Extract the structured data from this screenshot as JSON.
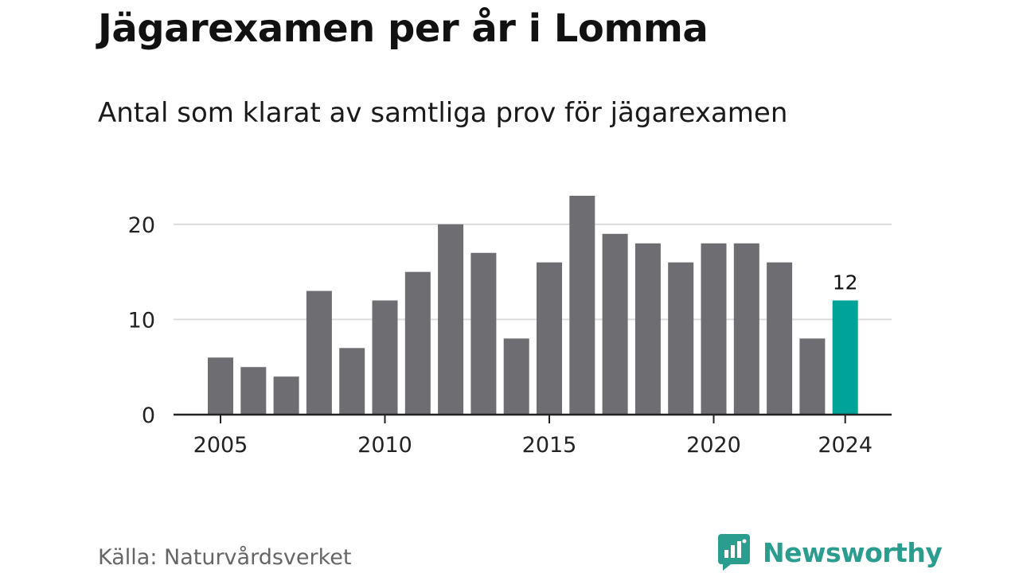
{
  "title": "Jägarexamen per år i Lomma",
  "subtitle": "Antal som klarat av samtliga prov för jägarexamen",
  "source": "Källa: Naturvårdsverket",
  "brand": {
    "name": "Newsworthy",
    "icon": "newsworthy-logo-icon",
    "color": "#2a9d8f"
  },
  "colors": {
    "bar": "#6e6d72",
    "highlight": "#00a398",
    "grid": "#dcdcdc",
    "axis": "#222222"
  },
  "chart_data": {
    "type": "bar",
    "title": "Jägarexamen per år i Lomma",
    "subtitle": "Antal som klarat av samtliga prov för jägarexamen",
    "xlabel": "",
    "ylabel": "",
    "categories": [
      2005,
      2006,
      2007,
      2008,
      2009,
      2010,
      2011,
      2012,
      2013,
      2014,
      2015,
      2016,
      2017,
      2018,
      2019,
      2020,
      2021,
      2022,
      2023,
      2024
    ],
    "values": [
      6,
      5,
      4,
      13,
      7,
      12,
      15,
      20,
      17,
      8,
      16,
      23,
      19,
      18,
      16,
      18,
      18,
      16,
      8,
      12
    ],
    "highlight": {
      "category": 2024,
      "label": "12"
    },
    "ylim": [
      0,
      23
    ],
    "yticks": [
      0,
      10,
      20
    ],
    "xticks": [
      2005,
      2010,
      2015,
      2020,
      2024
    ],
    "grid": true,
    "legend": "none"
  }
}
